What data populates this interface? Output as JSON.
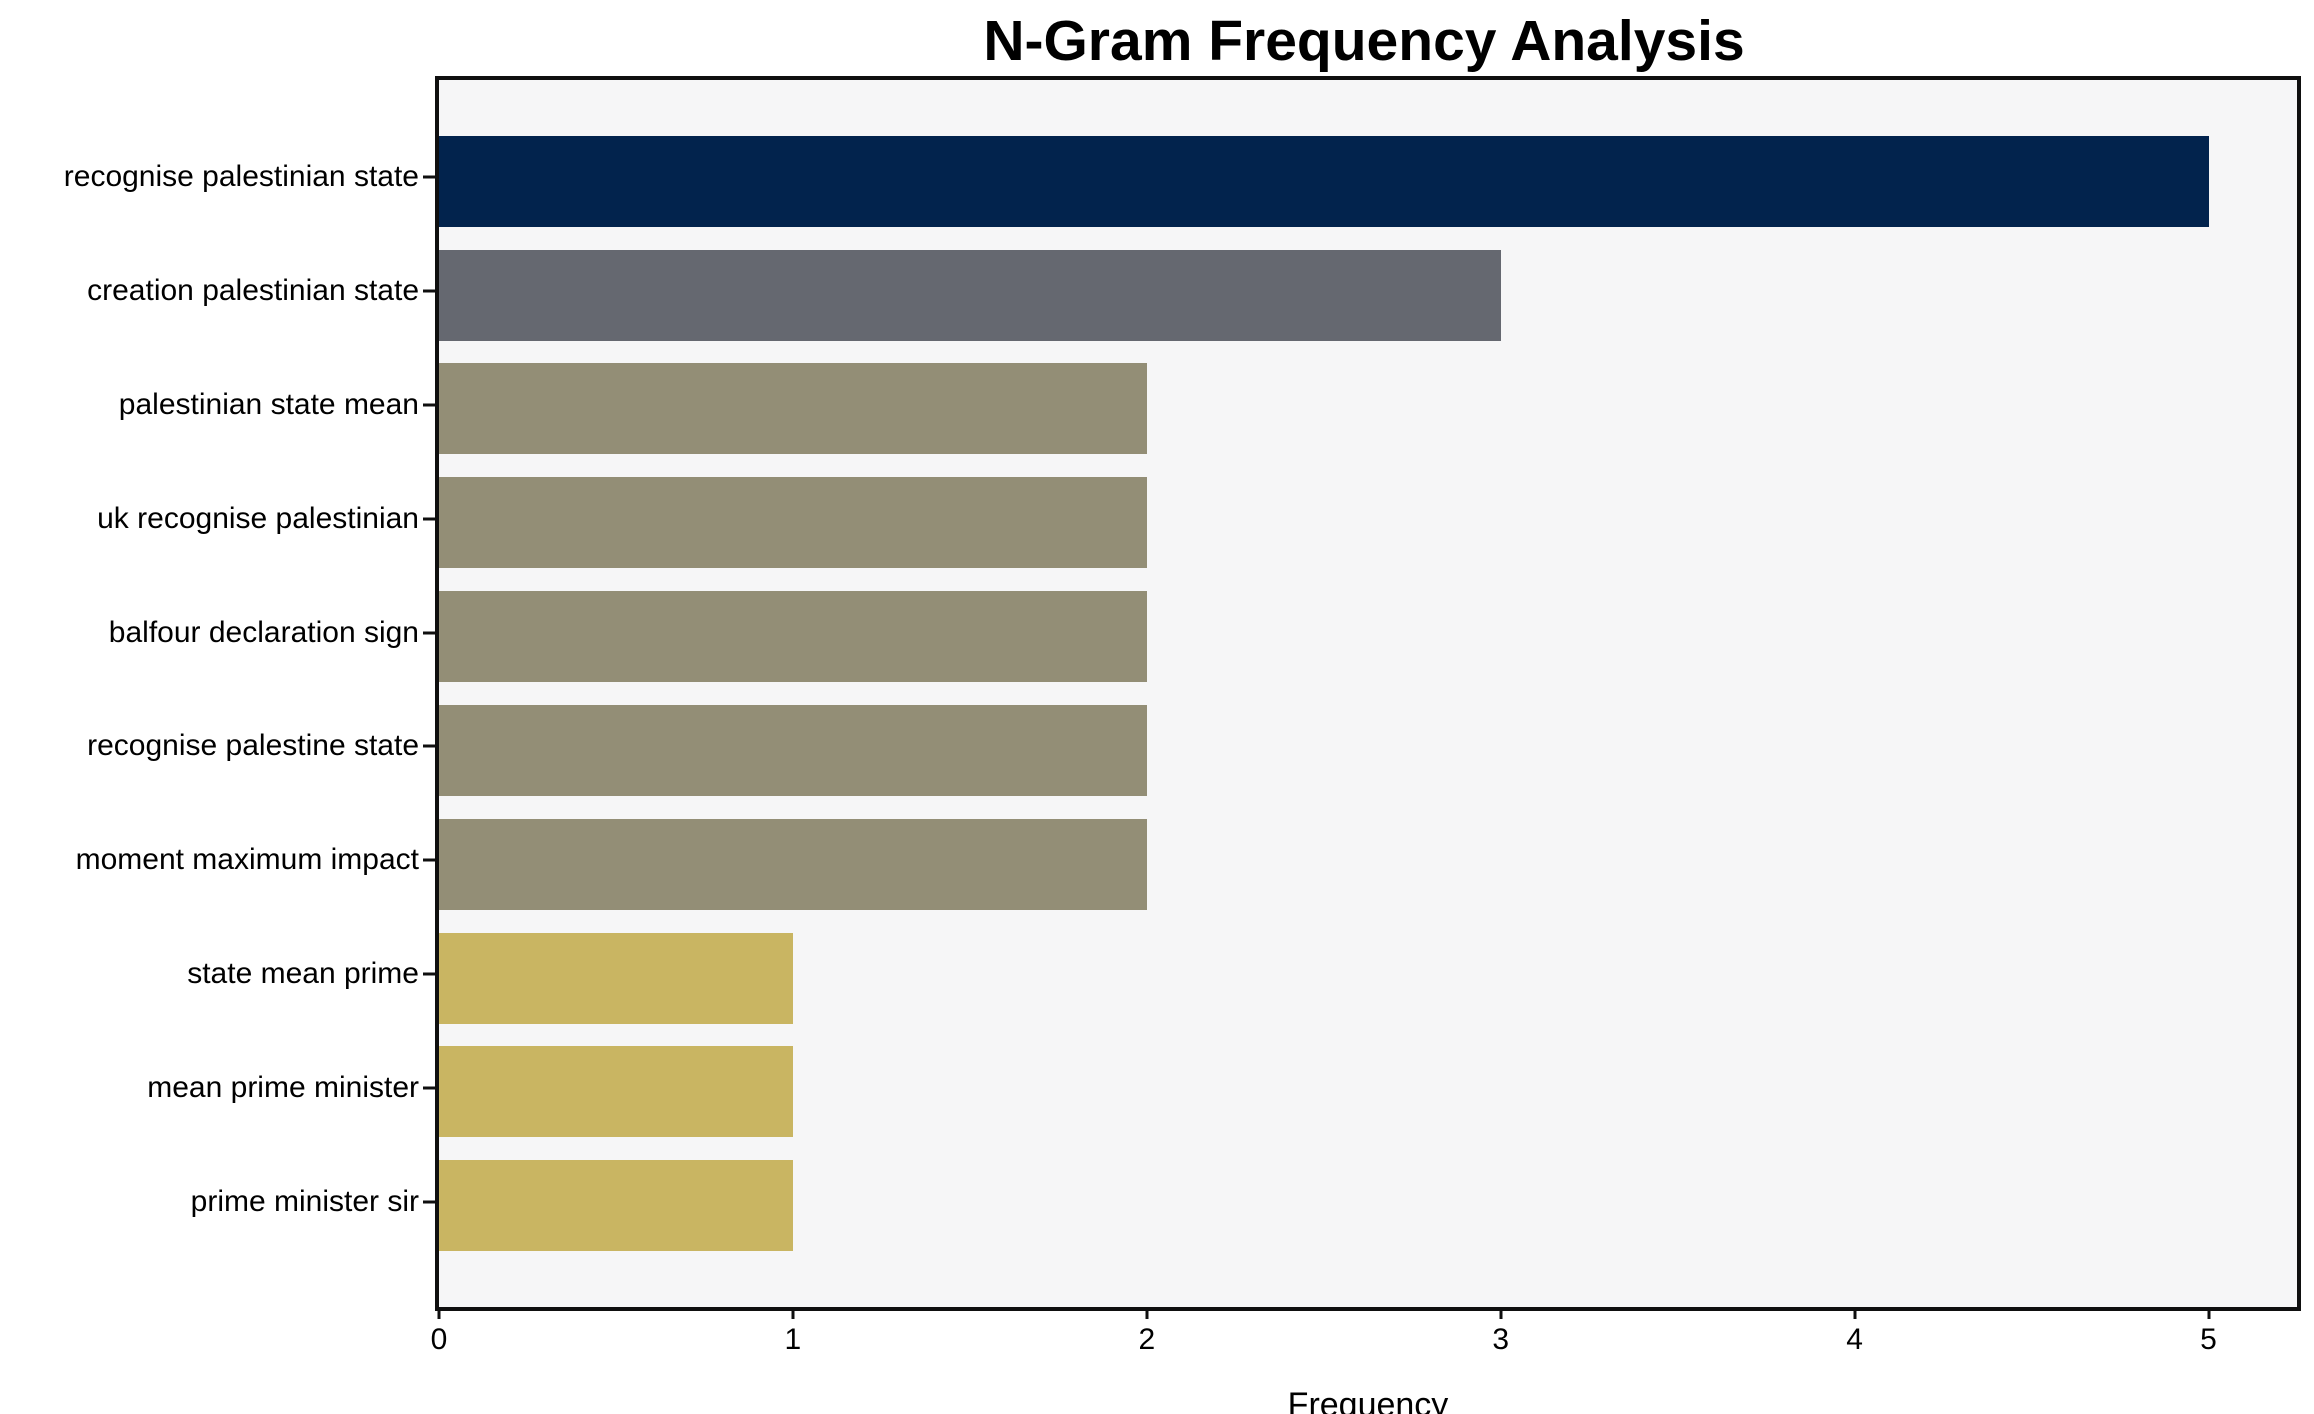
{
  "chart_data": {
    "type": "bar",
    "orientation": "horizontal",
    "title": "N-Gram Frequency Analysis",
    "xlabel": "Frequency",
    "ylabel": "",
    "categories": [
      "recognise palestinian state",
      "creation palestinian state",
      "palestinian state mean",
      "uk recognise palestinian",
      "balfour declaration sign",
      "recognise palestine state",
      "moment maximum impact",
      "state mean prime",
      "mean prime minister",
      "prime minister sir"
    ],
    "values": [
      5,
      3,
      2,
      2,
      2,
      2,
      2,
      1,
      1,
      1
    ],
    "bar_colors": [
      "#02234D",
      "#656870",
      "#938E76",
      "#938E76",
      "#938E76",
      "#938E76",
      "#938E76",
      "#C9B562",
      "#C9B562",
      "#C9B562"
    ],
    "x_ticks": [
      "0",
      "1",
      "2",
      "3",
      "4",
      "5"
    ],
    "xlim": [
      0,
      5.25
    ],
    "grid": false,
    "legend": null,
    "colors": {
      "plot_background": "#F6F6F7",
      "page_background": "#FFFFFF",
      "frame_border": "#0F0F0F",
      "text": "#000000"
    }
  }
}
